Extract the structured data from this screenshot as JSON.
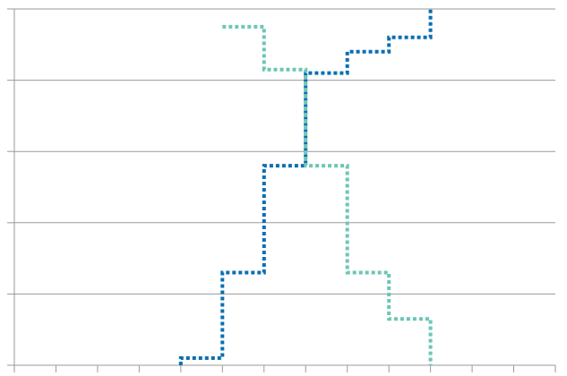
{
  "chart_data": {
    "type": "line",
    "step": "post",
    "grid": true,
    "xlim": [
      0,
      13
    ],
    "ylim": [
      0,
      5
    ],
    "x_tick_count": 14,
    "y_tick_count": 6,
    "series": [
      {
        "color": "#0a6fb2",
        "line_style": "dotted",
        "points": [
          [
            4,
            0
          ],
          [
            4,
            0.1
          ],
          [
            5,
            0.1
          ],
          [
            5,
            1.3
          ],
          [
            6,
            1.3
          ],
          [
            6,
            2.8
          ],
          [
            7,
            2.8
          ],
          [
            7,
            4.1
          ],
          [
            8,
            4.1
          ],
          [
            8,
            4.4
          ],
          [
            9,
            4.4
          ],
          [
            9,
            4.6
          ],
          [
            10,
            4.6
          ],
          [
            10,
            5.0
          ]
        ]
      },
      {
        "color": "#6cc6b4",
        "line_style": "dotted",
        "points": [
          [
            5,
            4.75
          ],
          [
            6,
            4.75
          ],
          [
            6,
            4.15
          ],
          [
            7,
            4.15
          ],
          [
            7,
            2.8
          ],
          [
            8,
            2.8
          ],
          [
            8,
            1.3
          ],
          [
            9,
            1.3
          ],
          [
            9,
            0.65
          ],
          [
            10,
            0.65
          ],
          [
            10,
            0
          ]
        ]
      }
    ]
  }
}
